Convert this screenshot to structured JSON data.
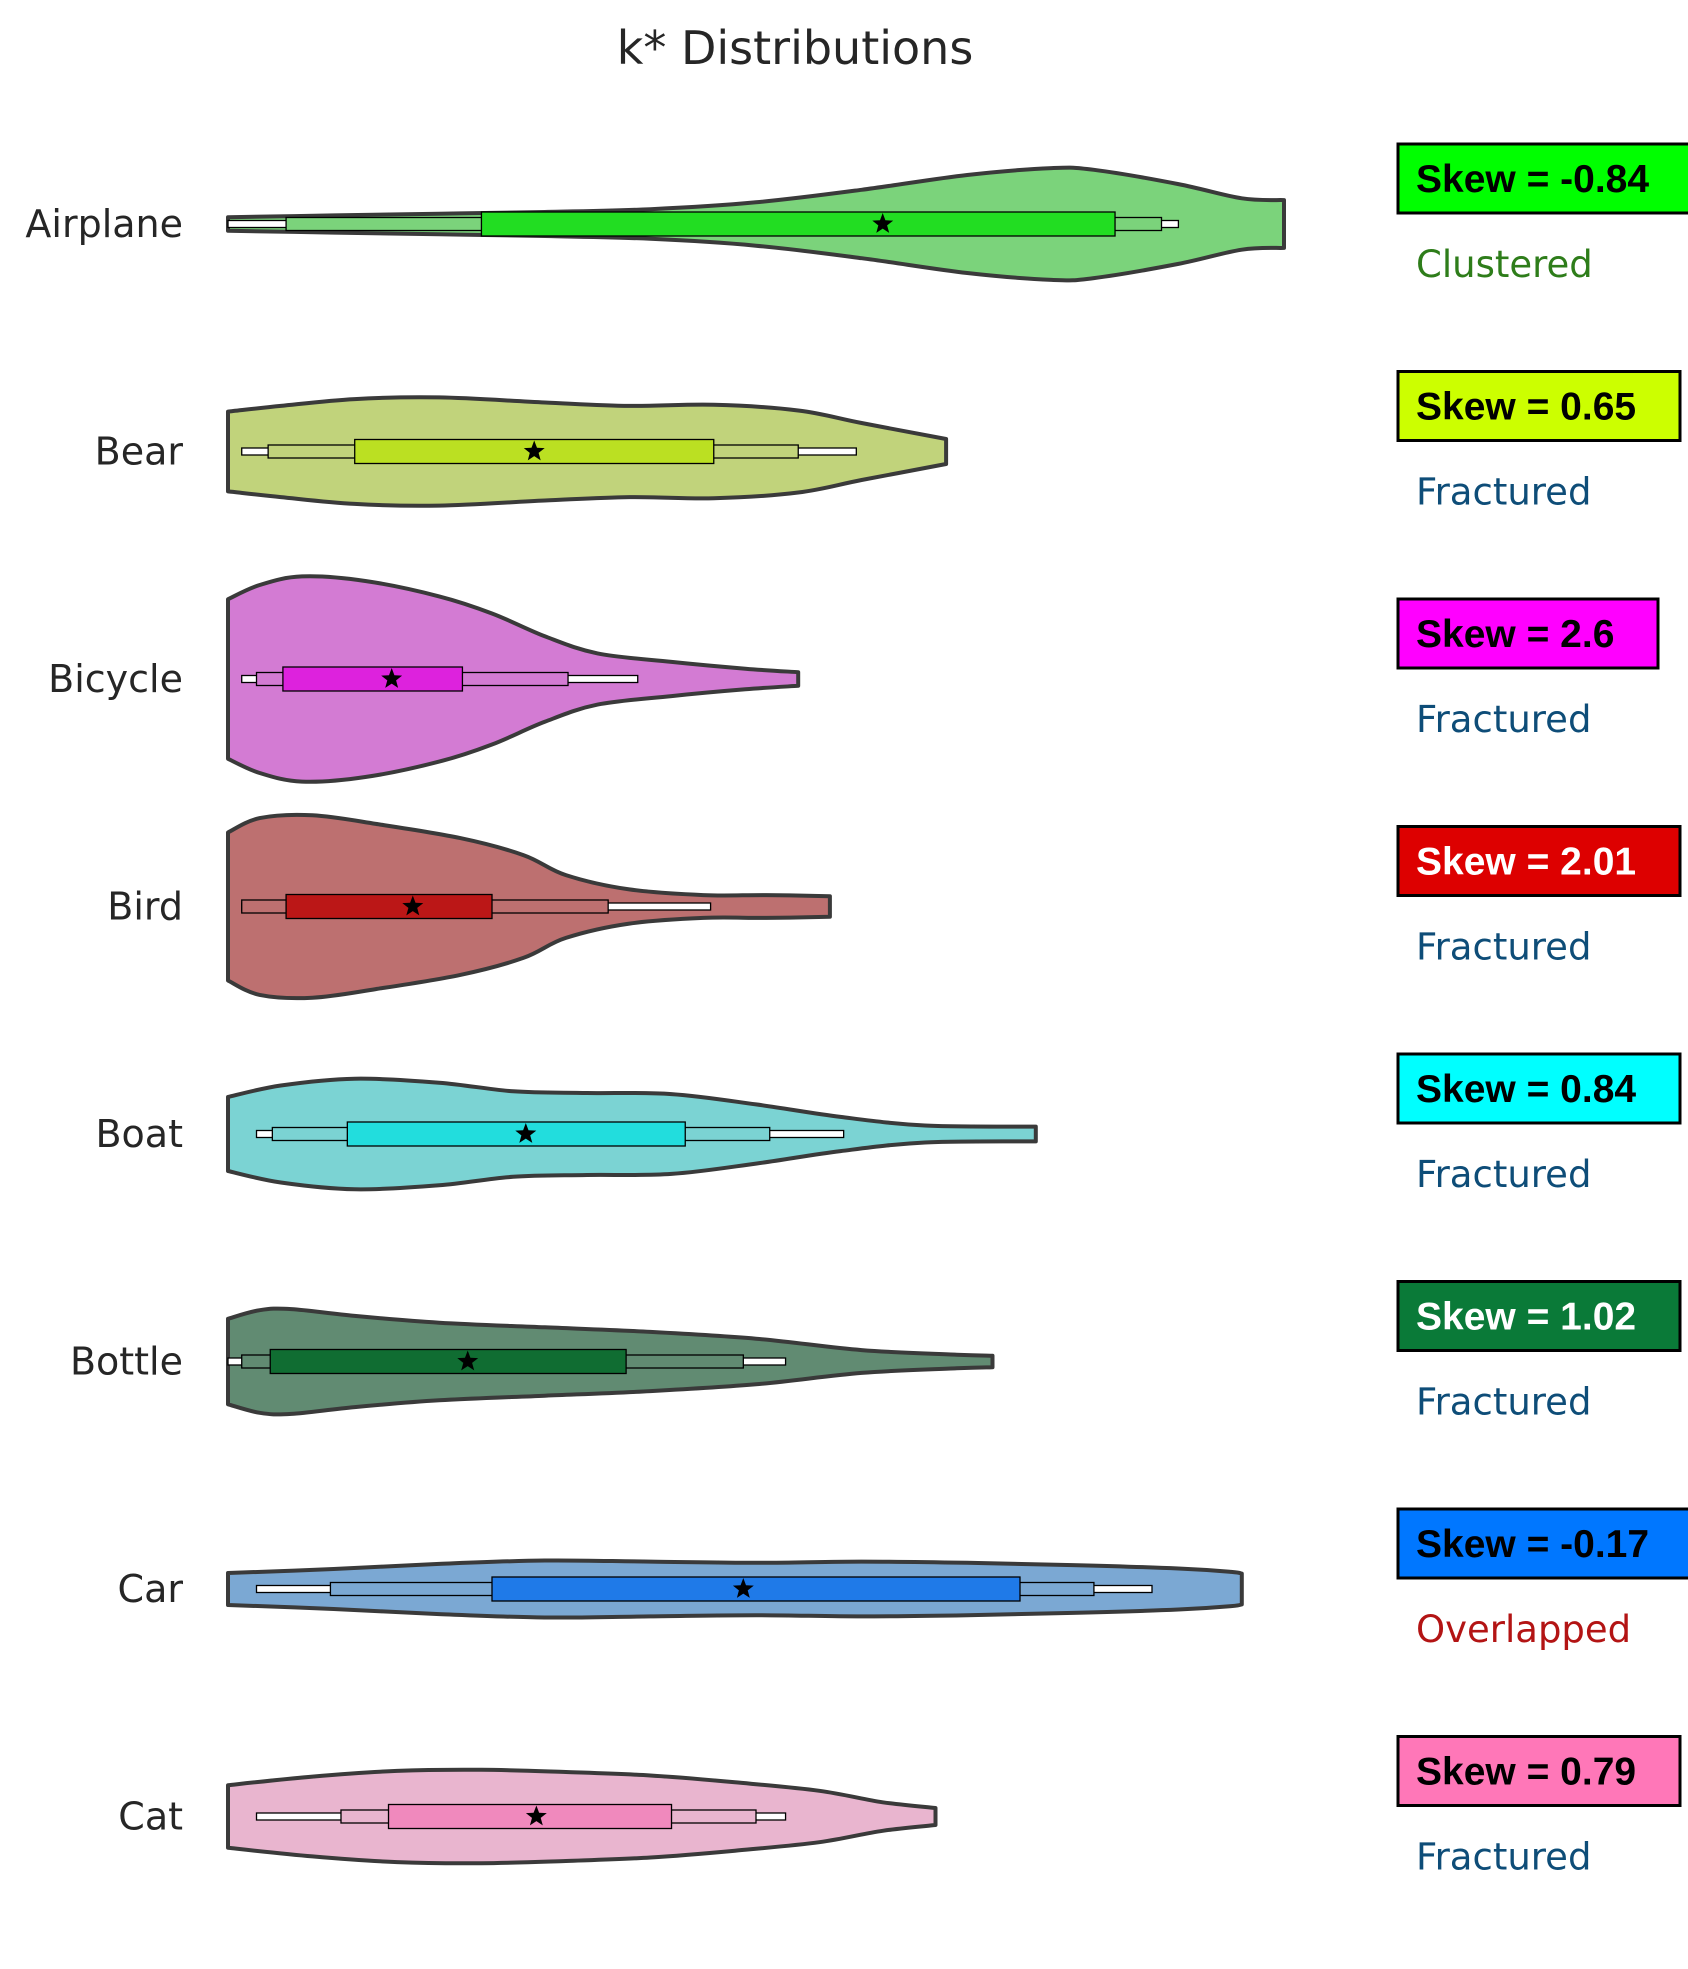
{
  "chart_data": {
    "type": "violin",
    "title": "k* Distributions",
    "orientation": "horizontal",
    "xlabel": "",
    "ylabel": "",
    "grid": false,
    "axes_visible": false,
    "categories": [
      "Airplane",
      "Bear",
      "Bicycle",
      "Bird",
      "Boat",
      "Bottle",
      "Car",
      "Cat"
    ],
    "series": [
      {
        "category": "Airplane",
        "fill_color": "#7bd37b",
        "box_color": "#22dd22",
        "label_color": "#00ff00",
        "skew_text_color": "#000000",
        "skew_label": "Skew = -0.84",
        "classification": "Clustered",
        "classification_color": "#2e7d1a",
        "min": 0.0,
        "p5": 0.055,
        "p25": 0.24,
        "median": 0.62,
        "p75": 0.84,
        "p95": 0.884,
        "max": 0.9,
        "profile": [
          [
            0.0,
            0.12
          ],
          [
            0.1,
            0.15
          ],
          [
            0.2,
            0.18
          ],
          [
            0.3,
            0.21
          ],
          [
            0.4,
            0.26
          ],
          [
            0.5,
            0.38
          ],
          [
            0.6,
            0.6
          ],
          [
            0.7,
            0.86
          ],
          [
            0.78,
            0.98
          ],
          [
            0.82,
            0.95
          ],
          [
            0.9,
            0.7
          ],
          [
            0.96,
            0.45
          ],
          [
            1.0,
            0.42
          ]
        ]
      },
      {
        "category": "Bear",
        "fill_color": "#c1d37b",
        "box_color": "#bbe022",
        "label_color": "#ccff00",
        "skew_text_color": "#000000",
        "skew_label": "Skew = 0.65",
        "classification": "Fractured",
        "classification_color": "#0e4d78",
        "min": 0.013,
        "p5": 0.038,
        "p25": 0.12,
        "median": 0.29,
        "p75": 0.46,
        "p95": 0.54,
        "max": 0.595,
        "profile": [
          [
            0.0,
            0.7
          ],
          [
            0.05,
            0.8
          ],
          [
            0.12,
            0.92
          ],
          [
            0.2,
            0.95
          ],
          [
            0.3,
            0.86
          ],
          [
            0.38,
            0.8
          ],
          [
            0.46,
            0.82
          ],
          [
            0.54,
            0.72
          ],
          [
            0.6,
            0.5
          ],
          [
            0.68,
            0.22
          ]
        ]
      },
      {
        "category": "Bicycle",
        "fill_color": "#d37bd3",
        "box_color": "#dd22dd",
        "label_color": "#ff00ff",
        "skew_text_color": "#000000",
        "skew_label": "Skew = 2.6",
        "classification": "Fractured",
        "classification_color": "#0e4d78",
        "min": 0.013,
        "p5": 0.027,
        "p25": 0.052,
        "median": 0.155,
        "p75": 0.222,
        "p95": 0.322,
        "max": 0.388,
        "profile": [
          [
            0.0,
            1.4
          ],
          [
            0.03,
            1.65
          ],
          [
            0.07,
            1.8
          ],
          [
            0.13,
            1.72
          ],
          [
            0.2,
            1.45
          ],
          [
            0.25,
            1.15
          ],
          [
            0.3,
            0.75
          ],
          [
            0.35,
            0.45
          ],
          [
            0.42,
            0.3
          ],
          [
            0.49,
            0.18
          ],
          [
            0.54,
            0.12
          ]
        ]
      },
      {
        "category": "Bird",
        "fill_color": "#bd7070",
        "box_color": "#bb1717",
        "label_color": "#dd0000",
        "skew_text_color": "#ffffff",
        "skew_label": "Skew = 2.01",
        "classification": "Fractured",
        "classification_color": "#0e4d78",
        "min": 0.013,
        "p5": 0.013,
        "p25": 0.055,
        "median": 0.175,
        "p75": 0.25,
        "p95": 0.36,
        "max": 0.457,
        "profile": [
          [
            0.0,
            1.3
          ],
          [
            0.03,
            1.55
          ],
          [
            0.08,
            1.6
          ],
          [
            0.14,
            1.45
          ],
          [
            0.22,
            1.2
          ],
          [
            0.28,
            0.9
          ],
          [
            0.32,
            0.55
          ],
          [
            0.38,
            0.3
          ],
          [
            0.45,
            0.2
          ],
          [
            0.51,
            0.2
          ],
          [
            0.57,
            0.18
          ]
        ]
      },
      {
        "category": "Boat",
        "fill_color": "#7bd3d3",
        "box_color": "#22dddd",
        "label_color": "#00ffff",
        "skew_text_color": "#000000",
        "skew_label": "Skew = 0.84",
        "classification": "Fractured",
        "classification_color": "#0e4d78",
        "min": 0.027,
        "p5": 0.042,
        "p25": 0.113,
        "median": 0.282,
        "p75": 0.433,
        "p95": 0.513,
        "max": 0.583,
        "profile": [
          [
            0.0,
            0.65
          ],
          [
            0.05,
            0.85
          ],
          [
            0.12,
            0.97
          ],
          [
            0.2,
            0.9
          ],
          [
            0.27,
            0.75
          ],
          [
            0.34,
            0.72
          ],
          [
            0.42,
            0.7
          ],
          [
            0.5,
            0.52
          ],
          [
            0.58,
            0.3
          ],
          [
            0.66,
            0.15
          ],
          [
            0.765,
            0.13
          ]
        ]
      },
      {
        "category": "Bottle",
        "fill_color": "#618b72",
        "box_color": "#106d32",
        "label_color": "#0a7a38",
        "skew_text_color": "#ffffff",
        "skew_label": "Skew = 1.02",
        "classification": "Fractured",
        "classification_color": "#0e4d78",
        "min": 0.0,
        "p5": 0.013,
        "p25": 0.04,
        "median": 0.227,
        "p75": 0.377,
        "p95": 0.488,
        "max": 0.528,
        "profile": [
          [
            0.0,
            0.75
          ],
          [
            0.03,
            0.9
          ],
          [
            0.06,
            0.92
          ],
          [
            0.12,
            0.8
          ],
          [
            0.2,
            0.68
          ],
          [
            0.3,
            0.6
          ],
          [
            0.4,
            0.52
          ],
          [
            0.5,
            0.4
          ],
          [
            0.6,
            0.2
          ],
          [
            0.69,
            0.12
          ],
          [
            0.724,
            0.1
          ]
        ]
      },
      {
        "category": "Car",
        "fill_color": "#7ba8d3",
        "box_color": "#1f7ae8",
        "label_color": "#0077ff",
        "skew_text_color": "#000000",
        "skew_label": "Skew = -0.17",
        "classification": "Overlapped",
        "classification_color": "#b31414",
        "min": 0.027,
        "p5": 0.097,
        "p25": 0.25,
        "median": 0.488,
        "p75": 0.75,
        "p95": 0.82,
        "max": 0.875,
        "profile": [
          [
            0.0,
            0.28
          ],
          [
            0.1,
            0.35
          ],
          [
            0.2,
            0.44
          ],
          [
            0.3,
            0.5
          ],
          [
            0.4,
            0.48
          ],
          [
            0.5,
            0.46
          ],
          [
            0.6,
            0.48
          ],
          [
            0.7,
            0.46
          ],
          [
            0.8,
            0.42
          ],
          [
            0.9,
            0.36
          ],
          [
            0.95,
            0.3
          ],
          [
            0.96,
            0.27
          ]
        ]
      },
      {
        "category": "Cat",
        "fill_color": "#e9b5cf",
        "box_color": "#f089bd",
        "label_color": "#ff77b8",
        "skew_text_color": "#000000",
        "skew_label": "Skew = 0.79",
        "classification": "Fractured",
        "classification_color": "#0e4d78",
        "min": 0.027,
        "p5": 0.107,
        "p25": 0.152,
        "median": 0.292,
        "p75": 0.42,
        "p95": 0.5,
        "max": 0.528,
        "profile": [
          [
            0.0,
            0.55
          ],
          [
            0.08,
            0.7
          ],
          [
            0.16,
            0.8
          ],
          [
            0.24,
            0.82
          ],
          [
            0.32,
            0.78
          ],
          [
            0.4,
            0.72
          ],
          [
            0.48,
            0.6
          ],
          [
            0.56,
            0.45
          ],
          [
            0.62,
            0.25
          ],
          [
            0.67,
            0.15
          ]
        ]
      }
    ]
  }
}
